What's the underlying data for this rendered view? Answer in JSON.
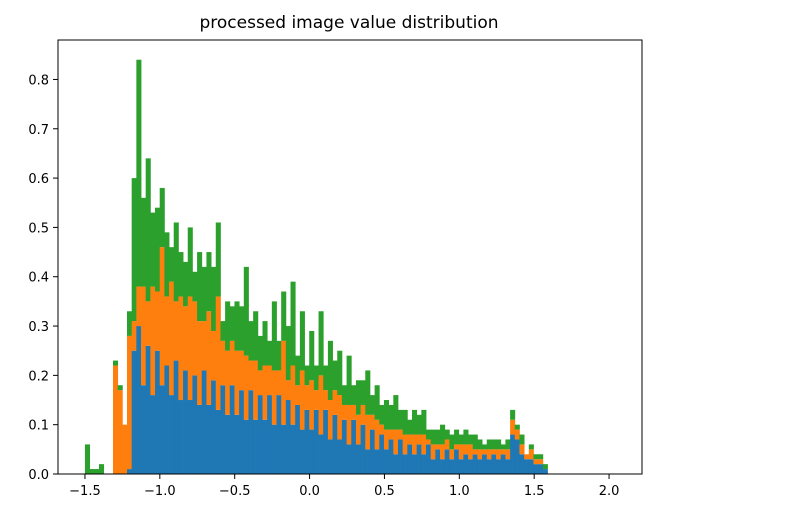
{
  "chart_data": {
    "type": "bar",
    "stacked": true,
    "title": "processed image value distribution",
    "xlabel": "",
    "ylabel": "",
    "xlim": [
      -1.68,
      2.22
    ],
    "ylim": [
      0,
      0.88
    ],
    "xticks": [
      -1.5,
      -1.0,
      -0.5,
      0.0,
      0.5,
      1.0,
      1.5,
      2.0
    ],
    "xtick_labels": [
      "−1.5",
      "−1.0",
      "−0.5",
      "0.0",
      "0.5",
      "1.0",
      "1.5",
      "2.0"
    ],
    "yticks": [
      0.0,
      0.1,
      0.2,
      0.3,
      0.4,
      0.5,
      0.6,
      0.7,
      0.8
    ],
    "ytick_labels": [
      "0.0",
      "0.1",
      "0.2",
      "0.3",
      "0.4",
      "0.5",
      "0.6",
      "0.7",
      "0.8"
    ],
    "grid": false,
    "bin_start": -1.5,
    "bin_width": 0.0312,
    "series": [
      {
        "color": "#1f77b4",
        "values": [
          0.0,
          0.0,
          0.0,
          0.0,
          0.0,
          0.0,
          0.0,
          0.0,
          0.0,
          0.01,
          0.25,
          0.3,
          0.18,
          0.26,
          0.16,
          0.25,
          0.18,
          0.22,
          0.16,
          0.23,
          0.15,
          0.21,
          0.15,
          0.2,
          0.14,
          0.21,
          0.14,
          0.19,
          0.13,
          0.18,
          0.12,
          0.18,
          0.12,
          0.17,
          0.11,
          0.17,
          0.11,
          0.16,
          0.11,
          0.16,
          0.1,
          0.16,
          0.1,
          0.15,
          0.1,
          0.14,
          0.09,
          0.13,
          0.09,
          0.13,
          0.08,
          0.13,
          0.07,
          0.12,
          0.07,
          0.11,
          0.06,
          0.11,
          0.06,
          0.1,
          0.05,
          0.09,
          0.05,
          0.08,
          0.05,
          0.07,
          0.04,
          0.07,
          0.04,
          0.06,
          0.04,
          0.06,
          0.04,
          0.06,
          0.03,
          0.05,
          0.03,
          0.05,
          0.03,
          0.05,
          0.03,
          0.04,
          0.03,
          0.04,
          0.03,
          0.04,
          0.03,
          0.04,
          0.03,
          0.04,
          0.03,
          0.08,
          0.07,
          0.04,
          0.03,
          0.03,
          0.02,
          0.02,
          0.01,
          0.0
        ]
      },
      {
        "color": "#ff7f0e",
        "values": [
          0.0,
          0.0,
          0.0,
          0.0,
          0.0,
          0.0,
          0.22,
          0.17,
          0.1,
          0.27,
          0.06,
          0.08,
          0.2,
          0.09,
          0.22,
          0.12,
          0.28,
          0.14,
          0.23,
          0.12,
          0.21,
          0.13,
          0.21,
          0.15,
          0.17,
          0.1,
          0.19,
          0.1,
          0.23,
          0.09,
          0.13,
          0.09,
          0.13,
          0.08,
          0.13,
          0.06,
          0.12,
          0.05,
          0.11,
          0.06,
          0.11,
          0.05,
          0.17,
          0.04,
          0.12,
          0.04,
          0.12,
          0.05,
          0.1,
          0.04,
          0.12,
          0.04,
          0.08,
          0.05,
          0.09,
          0.03,
          0.08,
          0.03,
          0.06,
          0.04,
          0.07,
          0.03,
          0.06,
          0.02,
          0.04,
          0.02,
          0.05,
          0.02,
          0.04,
          0.02,
          0.04,
          0.02,
          0.04,
          0.01,
          0.03,
          0.01,
          0.03,
          0.02,
          0.02,
          0.01,
          0.03,
          0.02,
          0.03,
          0.01,
          0.02,
          0.01,
          0.02,
          0.01,
          0.02,
          0.01,
          0.02,
          0.03,
          0.02,
          0.02,
          0.01,
          0.02,
          0.01,
          0.01,
          0.0,
          0.0
        ]
      },
      {
        "color": "#2ca02c",
        "values": [
          0.06,
          0.01,
          0.01,
          0.02,
          0.0,
          0.0,
          0.01,
          0.01,
          0.0,
          0.05,
          0.29,
          0.46,
          0.18,
          0.29,
          0.15,
          0.17,
          0.12,
          0.13,
          0.07,
          0.16,
          0.09,
          0.09,
          0.14,
          0.06,
          0.14,
          0.11,
          0.12,
          0.13,
          0.15,
          0.04,
          0.1,
          0.07,
          0.1,
          0.09,
          0.18,
          0.08,
          0.1,
          0.07,
          0.09,
          0.05,
          0.14,
          0.06,
          0.1,
          0.11,
          0.17,
          0.06,
          0.12,
          0.04,
          0.1,
          0.05,
          0.13,
          0.05,
          0.12,
          0.06,
          0.09,
          0.04,
          0.1,
          0.04,
          0.07,
          0.05,
          0.09,
          0.04,
          0.07,
          0.04,
          0.06,
          0.05,
          0.07,
          0.04,
          0.05,
          0.03,
          0.05,
          0.04,
          0.05,
          0.02,
          0.03,
          0.03,
          0.04,
          0.02,
          0.03,
          0.03,
          0.02,
          0.03,
          0.02,
          0.03,
          0.02,
          0.01,
          0.02,
          0.02,
          0.02,
          0.01,
          0.02,
          0.02,
          0.01,
          0.02,
          0.0,
          0.01,
          0.01,
          0.01,
          0.01,
          0.0
        ]
      }
    ]
  }
}
